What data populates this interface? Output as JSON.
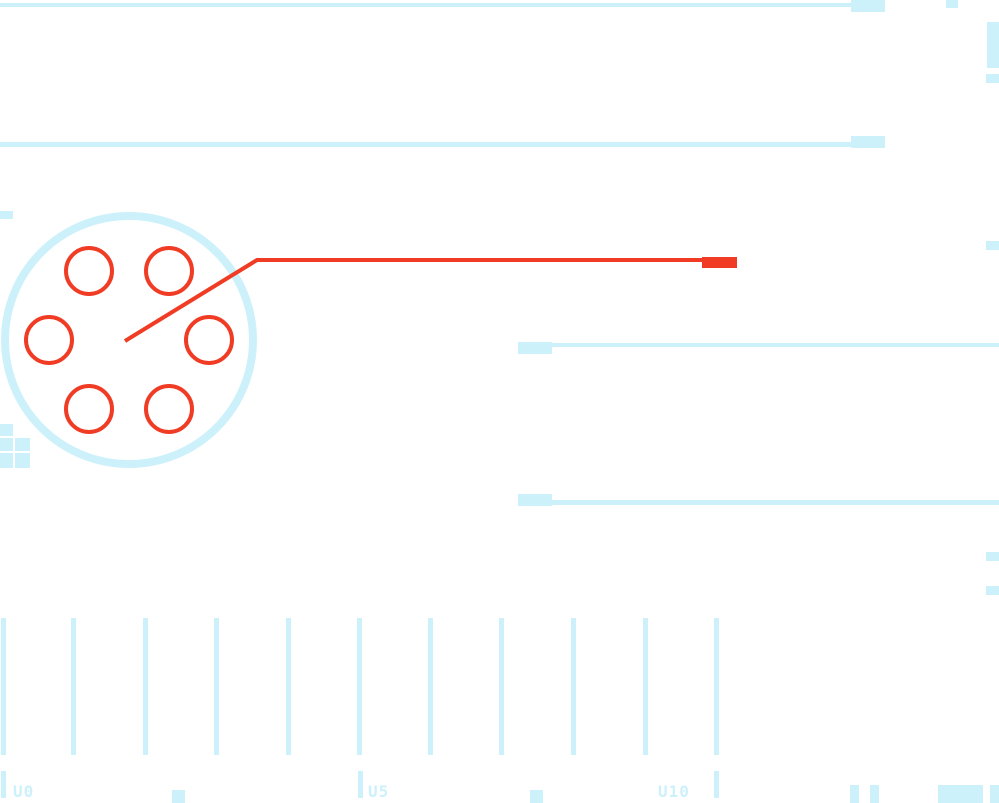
{
  "colors": {
    "trace": "#cdf1fb",
    "accent": "#f03c24",
    "background": "#ffffff"
  },
  "scale": {
    "labels": [
      "U0",
      "U5",
      "U10"
    ]
  },
  "component": {
    "type": "rotary-selector",
    "pin_count": 6
  }
}
